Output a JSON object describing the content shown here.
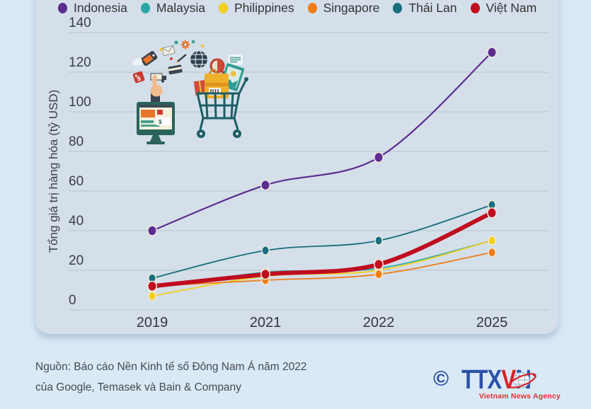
{
  "page": {
    "background": "#dae9f6",
    "panel_background": "#d4dfea",
    "gridline_color": "#b6c3cf"
  },
  "chart_data": {
    "type": "line",
    "title": "",
    "categories": [
      "2019",
      "2021",
      "2022",
      "2025"
    ],
    "series": [
      {
        "name": "Indonesia",
        "color": "#5b2d90",
        "values": [
          40,
          63,
          77,
          130
        ]
      },
      {
        "name": "Malaysia",
        "color": "#2ba7a5",
        "values": [
          11,
          19,
          21,
          35
        ]
      },
      {
        "name": "Philippines",
        "color": "#f2cf1c",
        "values": [
          7,
          17,
          20,
          35
        ]
      },
      {
        "name": "Singapore",
        "color": "#ee7d18",
        "values": [
          12,
          15,
          18,
          29
        ]
      },
      {
        "name": "Thái Lan",
        "color": "#186f7e",
        "values": [
          16,
          30,
          35,
          53
        ]
      },
      {
        "name": "Việt Nam",
        "color": "#bf0d1f",
        "values": [
          12,
          18,
          23,
          49
        ],
        "emphasis": true
      }
    ],
    "ylabel": "Tổng giá trị hàng hóa (tỷ USD)",
    "xlabel": "",
    "ylim": [
      0,
      140
    ],
    "ytick_step": 20,
    "grid": true,
    "legend_position": "top"
  },
  "footer": {
    "source_line1": "Nguồn: Báo cáo Nền Kinh tế số Đông Nam Á năm 2022",
    "source_line2": "của Google, Temasek và Bain & Company"
  },
  "logo": {
    "copyright": "©",
    "text_left": "TTX",
    "text_v": "V",
    "text_right": "N",
    "subtitle": "Vietnam News Agency",
    "blue": "#2c51a5",
    "red": "#d8232a"
  }
}
